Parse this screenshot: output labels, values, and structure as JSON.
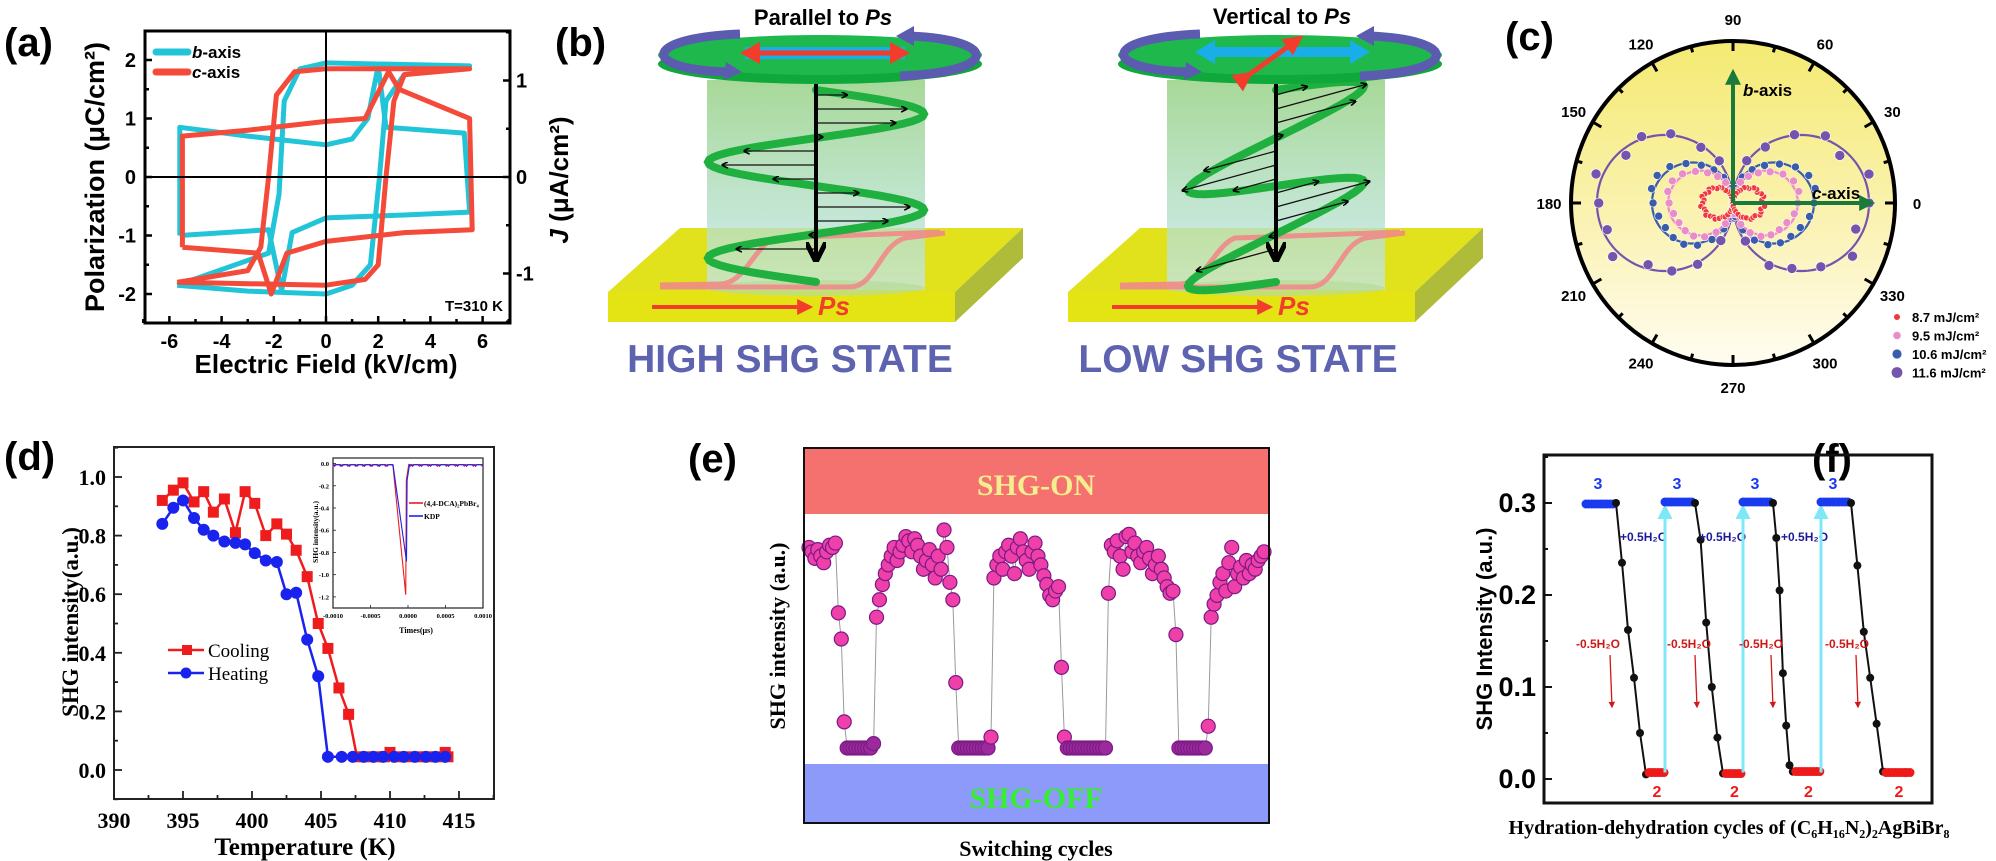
{
  "panel_labels": {
    "a": "(a)",
    "b": "(b)",
    "c": "(c)",
    "d": "(d)",
    "e": "(e)",
    "f": "(f)"
  },
  "chart_data": [
    {
      "id": "a",
      "type": "line",
      "xlabel": "Electric Field (kV/cm)",
      "ylabel": "Polarization (μC/cm²)",
      "ylabel_right": "J (μA/cm²)",
      "ylabel_right_italic": "J",
      "ylabel_right_rest": " (μA/cm²)",
      "xlim": [
        -7,
        7
      ],
      "ylim": [
        -2.5,
        2.5
      ],
      "ylim_right": [
        -1.5,
        1.5
      ],
      "xticks": [
        -6,
        -4,
        -2,
        0,
        2,
        4,
        6
      ],
      "yticks": [
        -2,
        -1,
        0,
        1,
        2
      ],
      "yticks_right": [
        -1,
        0,
        1
      ],
      "annotation": "T=310 K",
      "legend_position": "top-left",
      "colors": {
        "b_axis": "#22c4d8",
        "c_axis": "#f44a3a"
      },
      "series": [
        {
          "name": "b-axis",
          "name_italic": "b",
          "name_rest": "-axis",
          "color": "#22c4d8",
          "pe_loop": [
            [
              -5.7,
              -1.85
            ],
            [
              -2.2,
              -1.3
            ],
            [
              -1.8,
              -0.3
            ],
            [
              -1.6,
              1.3
            ],
            [
              -1.0,
              1.85
            ],
            [
              0,
              1.95
            ],
            [
              5.5,
              1.9
            ],
            [
              3.0,
              1.75
            ],
            [
              2.3,
              1.3
            ],
            [
              2.05,
              0
            ],
            [
              1.7,
              -1.5
            ],
            [
              1.0,
              -1.85
            ],
            [
              0,
              -2.0
            ],
            [
              -3,
              -1.95
            ],
            [
              -5.7,
              -1.85
            ]
          ],
          "j_loop": [
            [
              -5.6,
              -1.0
            ],
            [
              -5.6,
              0.85
            ],
            [
              -3,
              0.7
            ],
            [
              0,
              0.55
            ],
            [
              1.0,
              0.65
            ],
            [
              1.6,
              1.0
            ],
            [
              2.0,
              1.9
            ],
            [
              2.3,
              0.85
            ],
            [
              5.3,
              0.75
            ],
            [
              5.5,
              -0.6
            ],
            [
              3,
              -0.65
            ],
            [
              0,
              -0.7
            ],
            [
              -1.3,
              -0.95
            ],
            [
              -1.7,
              -1.95
            ],
            [
              -2.2,
              -0.9
            ],
            [
              -5.6,
              -1.0
            ]
          ]
        },
        {
          "name": "c-axis",
          "name_italic": "c",
          "name_rest": "-axis",
          "color": "#f44a3a",
          "pe_loop": [
            [
              -5.7,
              -1.8
            ],
            [
              -3,
              -1.6
            ],
            [
              -2.5,
              -1.2
            ],
            [
              -2.2,
              0
            ],
            [
              -1.9,
              1.4
            ],
            [
              -1.2,
              1.8
            ],
            [
              0,
              1.85
            ],
            [
              5.5,
              1.85
            ],
            [
              3.0,
              1.75
            ],
            [
              2.6,
              1.3
            ],
            [
              2.3,
              0
            ],
            [
              2.0,
              -1.5
            ],
            [
              1.5,
              -1.75
            ],
            [
              0,
              -1.85
            ],
            [
              -5.7,
              -1.8
            ]
          ],
          "j_loop": [
            [
              -5.5,
              -1.2
            ],
            [
              -5.5,
              0.7
            ],
            [
              -3,
              0.8
            ],
            [
              0,
              0.95
            ],
            [
              1.5,
              1.0
            ],
            [
              2.4,
              1.8
            ],
            [
              2.8,
              1.5
            ],
            [
              5.5,
              1.0
            ],
            [
              5.6,
              -0.9
            ],
            [
              3,
              -0.95
            ],
            [
              0,
              -1.1
            ],
            [
              -1.5,
              -1.3
            ],
            [
              -2.1,
              -2.0
            ],
            [
              -2.6,
              -1.3
            ],
            [
              -5.5,
              -1.2
            ]
          ]
        }
      ]
    },
    {
      "id": "b",
      "type": "schematic",
      "left": {
        "title_prefix": "Parallel to ",
        "title_italic": "Ps",
        "state": "HIGH SHG STATE",
        "ps_label": "Ps"
      },
      "right": {
        "title_prefix": "Vertical to ",
        "title_italic": "Ps",
        "state": "LOW SHG STATE",
        "ps_label": "Ps"
      },
      "colors": {
        "state_text": "#5e63b0",
        "disc": "#1fb84c",
        "rotation": "#5b5bb0",
        "plate": "#e2e21c",
        "ps": "#f23c2c"
      }
    },
    {
      "id": "c",
      "type": "scatter",
      "projection": "polar",
      "angle_ticks": [
        0,
        30,
        60,
        90,
        120,
        150,
        180,
        210,
        240,
        270,
        300,
        330
      ],
      "axis_labels": {
        "b_italic": "b",
        "b_rest": "-axis",
        "c_italic": "c",
        "c_rest": "-axis"
      },
      "legend_position": "bottom-right",
      "series": [
        {
          "name": "8.7 mJ/cm²",
          "color": "#f03a3a",
          "max_intensity": 0.19,
          "step_deg": 6
        },
        {
          "name": "9.5 mJ/cm²",
          "color": "#ea8cc8",
          "max_intensity": 0.4,
          "step_deg": 10
        },
        {
          "name": "10.6 mJ/cm²",
          "color": "#3a5cac",
          "max_intensity": 0.5,
          "step_deg": 10
        },
        {
          "name": "11.6 mJ/cm²",
          "color": "#7454ac",
          "max_intensity": 0.84,
          "step_deg": 12
        }
      ]
    },
    {
      "id": "d",
      "type": "line",
      "xlabel": "Temperature (K)",
      "ylabel": "SHG intensity(a.u.)",
      "xlim": [
        390,
        417.5
      ],
      "ylim": [
        -0.1,
        1.1
      ],
      "xticks": [
        390,
        395,
        400,
        405,
        410,
        415
      ],
      "yticks": [
        "0.0",
        "0.2",
        "0.4",
        "0.6",
        "0.8",
        "1.0"
      ],
      "legend_position": "center-left",
      "series": [
        {
          "name": "Cooling",
          "color": "#ee1c1c",
          "marker": "square",
          "x": [
            393.5,
            394.3,
            395,
            395.8,
            396.5,
            397.2,
            398,
            398.8,
            399.5,
            400.2,
            401,
            401.8,
            402.5,
            403.2,
            404,
            404.8,
            405.5,
            406.3,
            407,
            407.6,
            408.3,
            409,
            409.6,
            410,
            410.5,
            411.2,
            412,
            412.7,
            413.4,
            414,
            414.2
          ],
          "y": [
            0.92,
            0.955,
            0.98,
            0.915,
            0.95,
            0.88,
            0.925,
            0.81,
            0.95,
            0.91,
            0.8,
            0.84,
            0.805,
            0.75,
            0.66,
            0.5,
            0.415,
            0.28,
            0.19,
            0.045,
            0.045,
            0.045,
            0.045,
            0.06,
            0.045,
            0.045,
            0.045,
            0.045,
            0.045,
            0.06,
            0.045
          ]
        },
        {
          "name": "Heating",
          "color": "#1a22ee",
          "marker": "circle",
          "x": [
            393.5,
            394.3,
            395,
            395.8,
            396.5,
            397.2,
            398,
            398.8,
            399.5,
            400.2,
            401,
            401.8,
            402.5,
            403.2,
            404,
            404.8,
            405.5,
            406.5,
            407.3,
            408.1,
            408.8,
            409.5,
            410.3,
            411,
            411.8,
            412.6,
            413.3,
            414
          ],
          "y": [
            0.84,
            0.895,
            0.92,
            0.86,
            0.82,
            0.8,
            0.78,
            0.775,
            0.77,
            0.74,
            0.715,
            0.71,
            0.6,
            0.605,
            0.445,
            0.32,
            0.045,
            0.045,
            0.045,
            0.045,
            0.045,
            0.045,
            0.045,
            0.045,
            0.045,
            0.045,
            0.045,
            0.045
          ]
        }
      ],
      "inset": {
        "type": "line",
        "xlabel": "Times(μs)",
        "ylabel": "SHG intensity(a.u.)",
        "xlim": [
          -0.001,
          0.001
        ],
        "ylim": [
          -1.3,
          0.05
        ],
        "xticks": [
          "-0.0010",
          "-0.0005",
          "0.0000",
          "0.0005",
          "0.0010"
        ],
        "yticks": [
          "0.0",
          "-0.2",
          "-0.4",
          "-0.6",
          "-0.8",
          "-1.0",
          "-1.2"
        ],
        "legend_position": "center-right",
        "series": [
          {
            "name": "(4,4-DCA)₂PbBr₄",
            "color": "#ee1c1c",
            "baseline": -0.01,
            "dip_time": -3e-05,
            "dip_min": -1.18
          },
          {
            "name": "KDP",
            "color": "#1a22ee",
            "baseline": -0.01,
            "dip_time": -2e-05,
            "dip_min": -0.88
          }
        ]
      }
    },
    {
      "id": "e",
      "type": "scatter",
      "xlabel": "Switching cycles",
      "ylabel": "SHG intensity (a.u.)",
      "bands": [
        {
          "label": "SHG-ON",
          "fill": "#f47170",
          "text_color": "#f4ee90"
        },
        {
          "label": "SHG-OFF",
          "fill": "#8e9afa",
          "text_color": "#35ee35"
        }
      ],
      "colors": {
        "point": "#ef3fa8",
        "point_low": "#9c2a9c",
        "edge": "#7a1a86",
        "line": "#9a9a9a"
      },
      "values": [
        0.92,
        0.9,
        0.87,
        0.91,
        0.88,
        0.85,
        0.9,
        0.93,
        0.92,
        0.94,
        0.62,
        0.5,
        0.12,
        0,
        0,
        0,
        0,
        0,
        0,
        0,
        0,
        0,
        0.02,
        0.6,
        0.68,
        0.75,
        0.8,
        0.84,
        0.88,
        0.92,
        0.86,
        0.9,
        0.93,
        0.97,
        0.95,
        0.9,
        0.96,
        0.93,
        0.88,
        0.82,
        0.86,
        0.91,
        0.84,
        0.78,
        0.88,
        0.82,
        1.0,
        0.92,
        0.76,
        0.68,
        0.3,
        0,
        0,
        0,
        0,
        0,
        0,
        0,
        0,
        0,
        0,
        0,
        0.05,
        0.78,
        0.84,
        0.88,
        0.82,
        0.9,
        0.93,
        0.88,
        0.8,
        0.92,
        0.96,
        0.9,
        0.86,
        0.82,
        0.9,
        0.94,
        0.88,
        0.84,
        0.79,
        0.75,
        0.7,
        0.68,
        0.72,
        0.74,
        0.37,
        0.05,
        0,
        0,
        0,
        0,
        0,
        0,
        0,
        0,
        0,
        0,
        0,
        0,
        0,
        0,
        0.71,
        0.93,
        0.9,
        0.95,
        0.88,
        0.82,
        0.97,
        0.98,
        0.9,
        0.94,
        0.88,
        0.85,
        0.9,
        0.92,
        0.87,
        0.8,
        0.84,
        0.88,
        0.82,
        0.78,
        0.74,
        0.71,
        0.72,
        0.52,
        0,
        0,
        0,
        0,
        0,
        0,
        0,
        0,
        0,
        0,
        0.1,
        0.6,
        0.66,
        0.7,
        0.76,
        0.8,
        0.72,
        0.85,
        0.92,
        0.74,
        0.8,
        0.83,
        0.78,
        0.86,
        0.8,
        0.84,
        0.82,
        0.86,
        0.88,
        0.9
      ]
    },
    {
      "id": "f",
      "type": "line",
      "xlabel": "Hydration-dehydration cycles of (C₆H₁₆N₂)₂AgBiBr₈",
      "ylabel": "SHG Intensity (a.u.)",
      "ylim": [
        -0.026,
        0.35
      ],
      "yticks": [
        "0.0",
        "0.1",
        "0.2",
        "0.3"
      ],
      "hydrated_value": 0.3,
      "dehydrated_value": 0.007,
      "hydrated_label": "3",
      "dehydrated_label": "2",
      "hydration_label": "+0.5H₂O",
      "dehydration_label": "-0.5H₂O",
      "colors": {
        "hydrated": "#1a3af0",
        "dehydrated": "#ee1a1a",
        "transition": "#111111",
        "rehydrate_line": "#7fe8f8",
        "hydration_text": "#1a1a9a",
        "dehydration_text": "#d01818"
      },
      "cycles": [
        {
          "drop": [
            0.3,
            0.235,
            0.162,
            0.11,
            0.05,
            0.005
          ]
        },
        {
          "drop": [
            0.3,
            0.26,
            0.17,
            0.1,
            0.045,
            0.006
          ]
        },
        {
          "drop": [
            0.3,
            0.262,
            0.205,
            0.115,
            0.058,
            0.015,
            0.008
          ]
        },
        {
          "drop": [
            0.3,
            0.232,
            0.16,
            0.11,
            0.06,
            0.008
          ]
        }
      ]
    }
  ]
}
